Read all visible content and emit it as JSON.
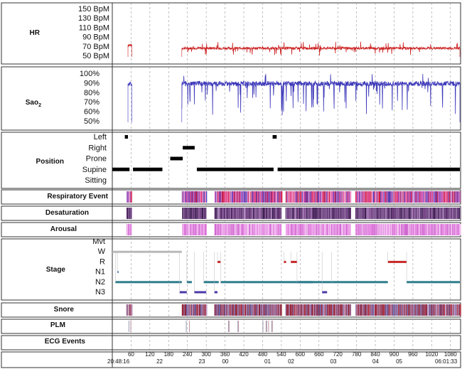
{
  "chart_data": {
    "type": "hypnogram_polysomnography",
    "time_axis": {
      "minutes_ticks": [
        "60",
        "120",
        "180",
        "240",
        "300",
        "360",
        "420",
        "480",
        "540",
        "600",
        "660",
        "720",
        "780",
        "840",
        "900",
        "960",
        "1020",
        "1080"
      ],
      "clock_ticks": [
        "22",
        "23",
        "00",
        "01",
        "02",
        "03",
        "04",
        "05"
      ],
      "start_label": "20:48:16",
      "end_label": "06:01:33",
      "range_minutes": [
        0,
        1110
      ]
    },
    "panels": {
      "hr": {
        "label": "HR",
        "ticks": [
          "150 BpM",
          "130 BpM",
          "110 BpM",
          "90 BpM",
          "70 BpM",
          "50 BpM"
        ],
        "ylim": [
          45,
          155
        ],
        "color": "#cc2222",
        "segments": [
          {
            "start": 50,
            "end": 62,
            "mean": 72
          },
          {
            "start": 222,
            "end": 1110,
            "mean": 65
          }
        ]
      },
      "sao2": {
        "label": "Sao",
        "label_sub": "2",
        "ticks": [
          "100%",
          "90%",
          "80%",
          "70%",
          "60%",
          "50%"
        ],
        "ylim": [
          45,
          105
        ],
        "color": "#3a36b8",
        "segments": [
          {
            "start": 50,
            "end": 62,
            "mean": 93
          },
          {
            "start": 222,
            "end": 1110,
            "mean": 93
          }
        ]
      },
      "position": {
        "label": "Position",
        "levels": [
          "Left",
          "Right",
          "Prone",
          "Supine",
          "Sitting"
        ],
        "color": "#000000",
        "segments": [
          {
            "start": 0,
            "end": 55,
            "level": "Supine"
          },
          {
            "start": 66,
            "end": 160,
            "level": "Supine"
          },
          {
            "start": 40,
            "end": 50,
            "level": "Left"
          },
          {
            "start": 185,
            "end": 225,
            "level": "Prone"
          },
          {
            "start": 225,
            "end": 263,
            "level": "Right"
          },
          {
            "start": 270,
            "end": 515,
            "level": "Supine"
          },
          {
            "start": 512,
            "end": 525,
            "level": "Left"
          },
          {
            "start": 528,
            "end": 1110,
            "level": "Supine"
          }
        ]
      },
      "respiratory": {
        "label": "Respiratory Event",
        "colors": [
          "#d41c3c",
          "#e055a8",
          "#4a46c8",
          "#f0a8d8"
        ],
        "active": [
          [
            45,
            62
          ],
          [
            222,
            300
          ],
          [
            326,
            540
          ],
          [
            553,
            760
          ],
          [
            776,
            1110
          ]
        ]
      },
      "desaturation": {
        "label": "Desaturation",
        "colors": [
          "#3a1e4e",
          "#6a3a7a",
          "#8a5a9a",
          "#b08ac0"
        ],
        "active": [
          [
            45,
            62
          ],
          [
            222,
            300
          ],
          [
            326,
            540
          ],
          [
            553,
            760
          ],
          [
            776,
            1110
          ]
        ]
      },
      "arousal": {
        "label": "Arousal",
        "colors": [
          "#d06ad0",
          "#e88ae4",
          "#f6c8f4"
        ],
        "active": [
          [
            45,
            62
          ],
          [
            222,
            300
          ],
          [
            326,
            540
          ],
          [
            553,
            760
          ],
          [
            776,
            1110
          ]
        ]
      },
      "stage": {
        "label": "Stage",
        "levels": [
          "Mvt",
          "W",
          "R",
          "N1",
          "N2",
          "N3"
        ],
        "segments": [
          {
            "start": 0,
            "end": 222,
            "level": "W"
          },
          {
            "start": 16,
            "end": 20,
            "level": "N1"
          },
          {
            "start": 10,
            "end": 222,
            "level": "N2"
          },
          {
            "start": 215,
            "end": 238,
            "level": "N3"
          },
          {
            "start": 238,
            "end": 254,
            "level": "N2"
          },
          {
            "start": 262,
            "end": 300,
            "level": "N3"
          },
          {
            "start": 292,
            "end": 340,
            "level": "N2"
          },
          {
            "start": 326,
            "end": 336,
            "level": "N3"
          },
          {
            "start": 336,
            "end": 346,
            "level": "R"
          },
          {
            "start": 346,
            "end": 640,
            "level": "N2"
          },
          {
            "start": 548,
            "end": 555,
            "level": "R"
          },
          {
            "start": 570,
            "end": 590,
            "level": "R"
          },
          {
            "start": 590,
            "end": 700,
            "level": "N2"
          },
          {
            "start": 670,
            "end": 686,
            "level": "N3"
          },
          {
            "start": 700,
            "end": 880,
            "level": "N2"
          },
          {
            "start": 880,
            "end": 940,
            "level": "R"
          },
          {
            "start": 940,
            "end": 1110,
            "level": "N2"
          }
        ]
      },
      "snore": {
        "label": "Snore",
        "colors": [
          "#8a1a2a",
          "#b84050",
          "#c0a0c8",
          "#6a6ab0"
        ],
        "active": [
          [
            45,
            62
          ],
          [
            222,
            300
          ],
          [
            326,
            540
          ],
          [
            553,
            760
          ],
          [
            776,
            1110
          ]
        ]
      },
      "plm": {
        "label": "PLM",
        "colors": [
          "#9a9ab0",
          "#c090a0"
        ],
        "ticks_at": [
          52,
          58,
          235,
          245,
          370,
          372,
          400,
          402,
          480,
          490,
          492,
          498,
          508,
          510
        ]
      },
      "ecg": {
        "label": "ECG Events"
      }
    }
  }
}
